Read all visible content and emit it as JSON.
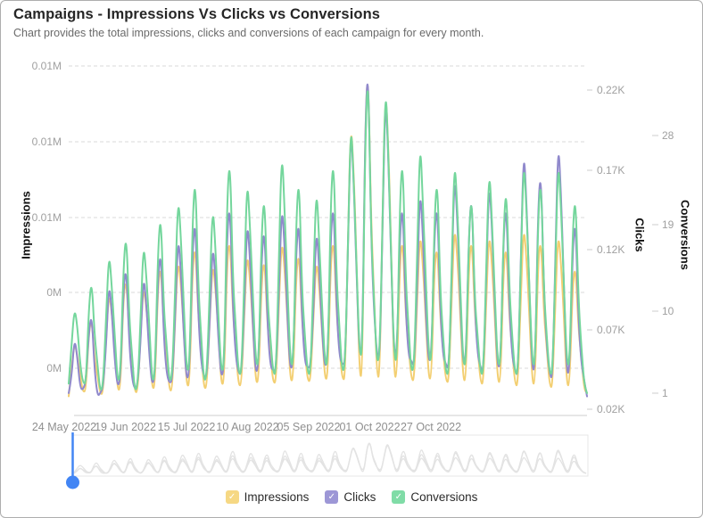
{
  "header": {
    "title": "Campaigns - Impressions Vs Clicks vs Conversions",
    "subtitle": "Chart provides the total impressions, clicks and conversions of each campaign for every month."
  },
  "axes": {
    "left": {
      "title": "Impressions",
      "labels": [
        "0.01M",
        "0.01M",
        "0.01M",
        "0M",
        "0M"
      ]
    },
    "right_clicks": {
      "title": "Clicks",
      "labels": [
        "0.22K",
        "0.17K",
        "0.12K",
        "0.07K",
        "0.02K"
      ]
    },
    "right_conversions": {
      "title": "Conversions",
      "labels": [
        "28",
        "19",
        "10",
        "1"
      ]
    },
    "x": {
      "labels": [
        "24 May 2022",
        "19 Jun 2022",
        "15 Jul 2022",
        "10 Aug 2022",
        "05 Sep 2022",
        "01 Oct 2022",
        "27 Oct 2022"
      ]
    }
  },
  "legend": {
    "check_glyph": "✓",
    "items": [
      {
        "label": "Impressions",
        "color": "#f6d884",
        "checked": true
      },
      {
        "label": "Clicks",
        "color": "#9d97d6",
        "checked": true
      },
      {
        "label": "Conversions",
        "color": "#80dca7",
        "checked": true
      }
    ]
  },
  "colors": {
    "impressions_line": "#f3cf72",
    "clicks_line": "#9089cc",
    "conversions_line": "#74d69c",
    "gridline": "#d9d9d9",
    "axis_line": "#cccccc",
    "tick_label": "#a0a0a0",
    "x_label": "#8f8f8f",
    "navigator_line": "#e3e3e3",
    "navigator_border": "#e7e7e7",
    "handle_blue": "#4285f4"
  },
  "navigator": {
    "handle_position_label": "24 May 2022"
  },
  "chart_data": {
    "type": "line",
    "title": "Campaigns - Impressions Vs Clicks vs Conversions",
    "subtitle": "Chart provides the total impressions, clicks and conversions of each campaign for every month.",
    "x_axis": {
      "kind": "date",
      "start": "24 May 2022",
      "tick_labels": [
        "24 May 2022",
        "19 Jun 2022",
        "15 Jul 2022",
        "10 Aug 2022",
        "05 Sep 2022",
        "01 Oct 2022",
        "27 Oct 2022"
      ],
      "tick_interval_days": 26
    },
    "y_axes": [
      {
        "name": "Impressions",
        "side": "left",
        "range": [
          0,
          10000
        ],
        "tick_labels_top_to_bottom": [
          "0.01M",
          "0.01M",
          "0.01M",
          "0M",
          "0M"
        ]
      },
      {
        "name": "Clicks",
        "side": "right",
        "range": [
          20,
          220
        ],
        "tick_labels_top_to_bottom": [
          "0.22K",
          "0.17K",
          "0.12K",
          "0.07K",
          "0.02K"
        ]
      },
      {
        "name": "Conversions",
        "side": "right",
        "range": [
          1,
          28
        ],
        "tick_labels_top_to_bottom": [
          "28",
          "19",
          "10",
          "1"
        ]
      }
    ],
    "grid": "horizontal-dashed",
    "legend_position": "bottom",
    "series": [
      {
        "name": "Impressions",
        "axis": "impressions",
        "color": "#f3cf72",
        "values": [
          300,
          1100,
          1900,
          1500,
          900,
          400,
          500,
          2200,
          2600,
          1400,
          900,
          350,
          400,
          2040,
          3400,
          2720,
          1700,
          450,
          550,
          3230,
          3800,
          2090,
          1330,
          400,
          450,
          2160,
          3600,
          2880,
          1800,
          500,
          600,
          3570,
          4200,
          2310,
          1470,
          450,
          500,
          2640,
          4400,
          3520,
          2200,
          550,
          700,
          4080,
          4800,
          2640,
          1680,
          500,
          600,
          2580,
          4300,
          3440,
          2150,
          600,
          750,
          4250,
          5000,
          2750,
          1750,
          600,
          650,
          2760,
          4600,
          3680,
          2300,
          650,
          800,
          3740,
          4400,
          2420,
          1540,
          700,
          700,
          3000,
          5000,
          4000,
          2500,
          700,
          850,
          3910,
          4600,
          2530,
          1610,
          750,
          750,
          2640,
          4400,
          3520,
          2200,
          750,
          900,
          4250,
          5000,
          2750,
          1750,
          800,
          800,
          5100,
          8500,
          6800,
          4250,
          850,
          950,
          8500,
          10000,
          5500,
          3500,
          900,
          850,
          5700,
          9500,
          7600,
          4750,
          850,
          900,
          4250,
          5000,
          2750,
          1750,
          800,
          750,
          3120,
          5200,
          4160,
          2600,
          800,
          850,
          4080,
          4800,
          2640,
          1680,
          750,
          700,
          3240,
          5400,
          4320,
          2700,
          750,
          800,
          4250,
          5000,
          2750,
          1750,
          700,
          650,
          3120,
          5200,
          4160,
          2600,
          700,
          750,
          4080,
          4800,
          2640,
          1680,
          650,
          600,
          3240,
          5400,
          4320,
          2700,
          650,
          700,
          4250,
          5000,
          2750,
          1750,
          600,
          550,
          3120,
          5200,
          4160,
          2600,
          600,
          650,
          3570,
          4200,
          2310,
          1470,
          500,
          400
        ]
      },
      {
        "name": "Clicks",
        "axis": "clicks",
        "color": "#9089cc",
        "values": [
          30,
          39,
          65,
          52,
          33,
          32,
          38,
          68,
          80,
          44,
          28,
          30,
          34,
          60,
          100,
          80,
          50,
          33,
          40,
          94,
          110,
          61,
          39,
          32,
          36,
          63,
          105,
          84,
          53,
          34,
          42,
          102,
          120,
          66,
          42,
          36,
          38,
          78,
          130,
          104,
          65,
          36,
          46,
          119,
          140,
          77,
          49,
          40,
          40,
          75,
          125,
          100,
          63,
          38,
          48,
          128,
          150,
          83,
          53,
          42,
          42,
          84,
          140,
          112,
          70,
          40,
          50,
          115,
          135,
          74,
          47,
          44,
          44,
          90,
          150,
          120,
          75,
          42,
          52,
          119,
          140,
          77,
          49,
          46,
          46,
          81,
          135,
          108,
          68,
          44,
          54,
          128,
          150,
          83,
          53,
          48,
          48,
          120,
          200,
          160,
          100,
          52,
          58,
          200,
          235,
          129,
          82,
          54,
          50,
          132,
          220,
          176,
          110,
          52,
          56,
          128,
          150,
          83,
          53,
          50,
          46,
          96,
          160,
          128,
          80,
          48,
          54,
          128,
          150,
          83,
          53,
          48,
          44,
          102,
          170,
          136,
          85,
          46,
          52,
          132,
          155,
          85,
          54,
          46,
          42,
          99,
          165,
          132,
          83,
          44,
          50,
          128,
          150,
          83,
          53,
          44,
          40,
          111,
          185,
          148,
          93,
          42,
          48,
          145,
          170,
          94,
          60,
          42,
          38,
          114,
          190,
          152,
          95,
          40,
          46,
          119,
          140,
          77,
          49,
          38,
          28
        ]
      },
      {
        "name": "Conversions",
        "axis": "conversions",
        "color": "#74d69c",
        "values": [
          2,
          6,
          10,
          8,
          4,
          2,
          2,
          10,
          13,
          7,
          4,
          1,
          2,
          9,
          16,
          12,
          7,
          2,
          3,
          14,
          18,
          9,
          5,
          1,
          2,
          9,
          17,
          13,
          8,
          2,
          3,
          16,
          20,
          10,
          6,
          2,
          3,
          12,
          22,
          17,
          10,
          3,
          4,
          19,
          24,
          12,
          7,
          2,
          3,
          12,
          21,
          16,
          9,
          3,
          4,
          21,
          26,
          13,
          8,
          3,
          3,
          13,
          24,
          18,
          11,
          4,
          4,
          18,
          22,
          11,
          7,
          3,
          3,
          15,
          27,
          20,
          12,
          4,
          4,
          19,
          24,
          12,
          7,
          3,
          3,
          13,
          23,
          17,
          10,
          4,
          4,
          21,
          26,
          13,
          8,
          3,
          4,
          17,
          30,
          23,
          14,
          5,
          5,
          28,
          35,
          18,
          11,
          4,
          5,
          19,
          34,
          26,
          15,
          5,
          4,
          21,
          26,
          13,
          8,
          3,
          4,
          15,
          28,
          21,
          13,
          5,
          4,
          19,
          24,
          12,
          7,
          3,
          3,
          14,
          26,
          20,
          12,
          4,
          4,
          18,
          22,
          11,
          7,
          3,
          3,
          14,
          25,
          19,
          11,
          4,
          4,
          18,
          23,
          12,
          7,
          3,
          3,
          14,
          26,
          20,
          12,
          4,
          4,
          19,
          24,
          12,
          7,
          3,
          3,
          14,
          26,
          20,
          12,
          4,
          4,
          18,
          22,
          11,
          6,
          2,
          1
        ]
      }
    ]
  }
}
